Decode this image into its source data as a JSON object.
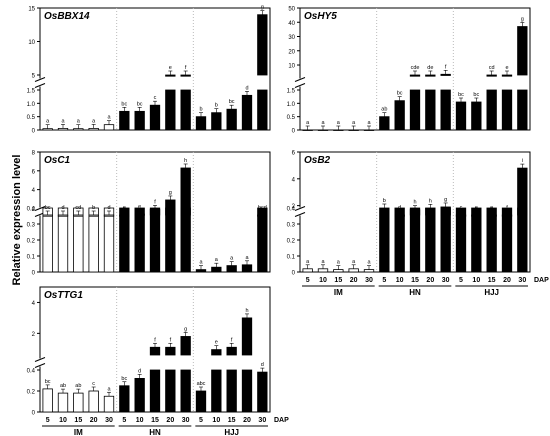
{
  "ylabel": "Relative expression level",
  "x_tick_labels": [
    "5",
    "10",
    "15",
    "20",
    "30"
  ],
  "dap_label": "DAP",
  "group_labels": [
    "IM",
    "HN",
    "HJJ"
  ],
  "chart_data": [
    {
      "type": "bar",
      "title": "OsBBX14",
      "x": [
        "IM-5",
        "IM-10",
        "IM-15",
        "IM-20",
        "IM-30",
        "HN-5",
        "HN-10",
        "HN-15",
        "HN-20",
        "HN-30",
        "HJJ-5",
        "HJJ-10",
        "HJJ-15",
        "HJJ-20",
        "HJJ-30"
      ],
      "values": [
        0.05,
        0.06,
        0.05,
        0.06,
        0.2,
        0.7,
        0.7,
        0.93,
        2.3,
        2.8,
        0.5,
        0.65,
        0.78,
        1.3,
        14
      ],
      "letters": [
        "a",
        "a",
        "a",
        "a",
        "a",
        "bc",
        "bc",
        "c",
        "e",
        "f",
        "b",
        "b",
        "bc",
        "d",
        "g"
      ],
      "broken_y_axis": true,
      "lower_ticks": [
        "0",
        "0.5",
        "1.0",
        "1.5"
      ],
      "upper_ticks": [
        "5",
        "10",
        "15"
      ]
    },
    {
      "type": "bar",
      "title": "OsHY5",
      "x": [
        "IM-5",
        "IM-10",
        "IM-15",
        "IM-20",
        "IM-30",
        "HN-5",
        "HN-10",
        "HN-15",
        "HN-20",
        "HN-30",
        "HJJ-5",
        "HJJ-10",
        "HJJ-15",
        "HJJ-20",
        "HJJ-30"
      ],
      "values": [
        0.0,
        0.0,
        0.0,
        0.0,
        0.0,
        0.5,
        1.1,
        1.8,
        2.4,
        3.5,
        1.05,
        1.05,
        1.7,
        2.1,
        37
      ],
      "letters": [
        "a",
        "a",
        "a",
        "a",
        "a",
        "ab",
        "bc",
        "cde",
        "de",
        "f",
        "bc",
        "bc",
        "cd",
        "e",
        "g"
      ],
      "broken_y_axis": true,
      "lower_ticks": [
        "0",
        "0.5",
        "1.0",
        "1.5"
      ],
      "upper_ticks": [
        "10",
        "20",
        "30",
        "40",
        "50"
      ]
    },
    {
      "type": "bar",
      "title": "OsC1",
      "x": [
        "IM-5",
        "IM-10",
        "IM-15",
        "IM-20",
        "IM-30",
        "HN-5",
        "HN-10",
        "HN-15",
        "HN-20",
        "HN-30",
        "HJJ-5",
        "HJJ-10",
        "HJJ-15",
        "HJJ-20",
        "HJJ-30"
      ],
      "values": [
        1.2,
        1.2,
        1.3,
        1.2,
        1.3,
        1.3,
        1.4,
        1.9,
        2.9,
        6.3,
        0.015,
        0.03,
        0.04,
        0.045,
        1.2
      ],
      "letters": [
        "bc",
        "d",
        "cd",
        "b",
        "d",
        "e",
        "e",
        "f",
        "g",
        "h",
        "a",
        "a",
        "a",
        "a",
        "bcd"
      ],
      "broken_y_axis": true,
      "lower_ticks": [
        "0",
        "0.1",
        "0.2",
        "0.3",
        "0.4"
      ],
      "upper_ticks": [
        "2",
        "4",
        "6",
        "8"
      ]
    },
    {
      "type": "bar",
      "title": "OsB2",
      "x": [
        "IM-5",
        "IM-10",
        "IM-15",
        "IM-20",
        "IM-30",
        "HN-5",
        "HN-10",
        "HN-15",
        "HN-20",
        "HN-30",
        "HJJ-5",
        "HJJ-10",
        "HJJ-15",
        "HJJ-20",
        "HJJ-30"
      ],
      "values": [
        0.02,
        0.02,
        0.015,
        0.02,
        0.015,
        0.4,
        0.8,
        1.7,
        1.8,
        1.9,
        0.5,
        0.85,
        0.95,
        1.0,
        4.8
      ],
      "letters": [
        "a",
        "a",
        "a",
        "a",
        "a",
        "b",
        "d",
        "h",
        "h",
        "g",
        "c",
        "e",
        "e",
        "f",
        "i"
      ],
      "broken_y_axis": true,
      "lower_ticks": [
        "0",
        "0.1",
        "0.2",
        "0.3",
        "0.4"
      ],
      "upper_ticks": [
        "2",
        "4",
        "6"
      ]
    },
    {
      "type": "bar",
      "title": "OsTTG1",
      "x": [
        "IM-5",
        "IM-10",
        "IM-15",
        "IM-20",
        "IM-30",
        "HN-5",
        "HN-10",
        "HN-15",
        "HN-20",
        "HN-30",
        "HJJ-5",
        "HJJ-10",
        "HJJ-15",
        "HJJ-20",
        "HJJ-30"
      ],
      "values": [
        0.22,
        0.18,
        0.18,
        0.2,
        0.15,
        0.25,
        0.32,
        1.1,
        1.1,
        1.8,
        0.2,
        0.95,
        1.1,
        3.0,
        0.38
      ],
      "letters": [
        "bc",
        "ab",
        "ab",
        "c",
        "a",
        "bc",
        "d",
        "f",
        "f",
        "g",
        "abc",
        "e",
        "f",
        "h",
        "d"
      ],
      "broken_y_axis": true,
      "lower_ticks": [
        "0",
        "0.2",
        "0.4"
      ],
      "upper_ticks": [
        "2",
        "4"
      ]
    }
  ]
}
